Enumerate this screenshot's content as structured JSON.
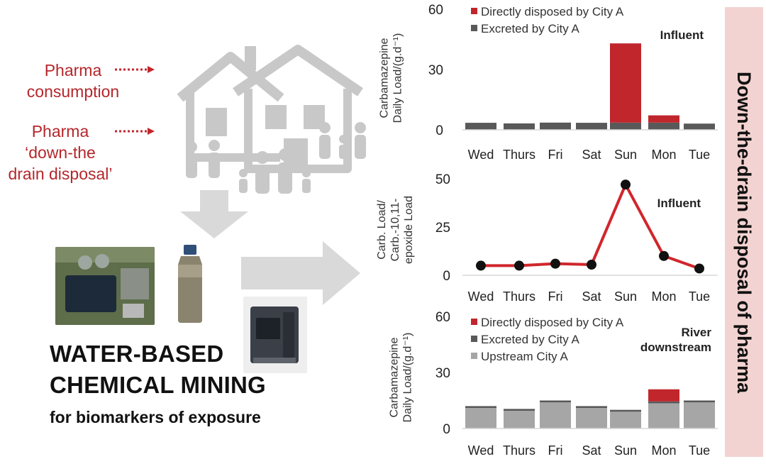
{
  "left": {
    "label_consumption": [
      "Pharma",
      "consumption"
    ],
    "label_disposal": [
      "Pharma",
      "‘down-the",
      "drain disposal’"
    ],
    "title_line1": "WATER-BASED",
    "title_line2": "CHEMICAL MINING",
    "title_line3": "for biomarkers of exposure"
  },
  "side_label": "Down-the-drain disposal of pharma",
  "colors": {
    "red": "#c0262c",
    "dark_grey": "#595959",
    "light_grey": "#a6a6a6",
    "line_red": "#d0262c",
    "marker": "#111111",
    "side_panel": "#f3d3d1",
    "arrow": "#d9d9d9"
  },
  "chart_data": [
    {
      "type": "bar",
      "stacked": true,
      "annotation": "Influent",
      "ylabel": "Carbamazepine Daily Load/(g.d⁻¹)",
      "ylim": [
        0,
        60
      ],
      "yticks": [
        0,
        30,
        60
      ],
      "categories": [
        "Wed",
        "Thurs",
        "Fri",
        "Sat",
        "Sun",
        "Mon",
        "Tue"
      ],
      "legend": [
        "Directly disposed by City A",
        "Excreted by City A"
      ],
      "series": [
        {
          "name": "Excreted by City A",
          "color": "dark_grey",
          "values": [
            3.5,
            3.2,
            3.6,
            3.5,
            3.6,
            3.6,
            3.1
          ]
        },
        {
          "name": "Directly disposed by City A",
          "color": "red",
          "values": [
            0,
            0,
            0,
            0,
            39.4,
            3.6,
            0
          ]
        }
      ]
    },
    {
      "type": "line",
      "annotation": "Influent",
      "ylabel": "Carb. Load/ Carb.-10,11-epoxide Load",
      "ylim": [
        0,
        50
      ],
      "yticks": [
        0,
        25,
        50
      ],
      "categories": [
        "Wed",
        "Thurs",
        "Fri",
        "Sat",
        "Sun",
        "Mon",
        "Tue"
      ],
      "values": [
        5,
        5,
        6,
        5.5,
        47,
        10,
        3.5
      ]
    },
    {
      "type": "bar",
      "stacked": true,
      "annotation": "River downstream",
      "ylabel": "Carbamazepine Daily Load/(g.d⁻¹)",
      "ylim": [
        0,
        60
      ],
      "yticks": [
        0,
        30,
        60
      ],
      "categories": [
        "Wed",
        "Thurs",
        "Fri",
        "Sat",
        "Sun",
        "Mon",
        "Tue"
      ],
      "legend": [
        "Directly disposed by City A",
        "Excreted by City A",
        "Upstream City A"
      ],
      "series": [
        {
          "name": "Upstream City A",
          "color": "light_grey",
          "values": [
            11,
            9.5,
            14,
            11,
            9,
            13.5,
            14
          ]
        },
        {
          "name": "Excreted by City A",
          "color": "dark_grey",
          "values": [
            1,
            1,
            1,
            1,
            1,
            1,
            1
          ]
        },
        {
          "name": "Directly disposed by City A",
          "color": "red",
          "values": [
            0,
            0,
            0,
            0,
            0,
            6.5,
            0
          ]
        }
      ]
    }
  ]
}
